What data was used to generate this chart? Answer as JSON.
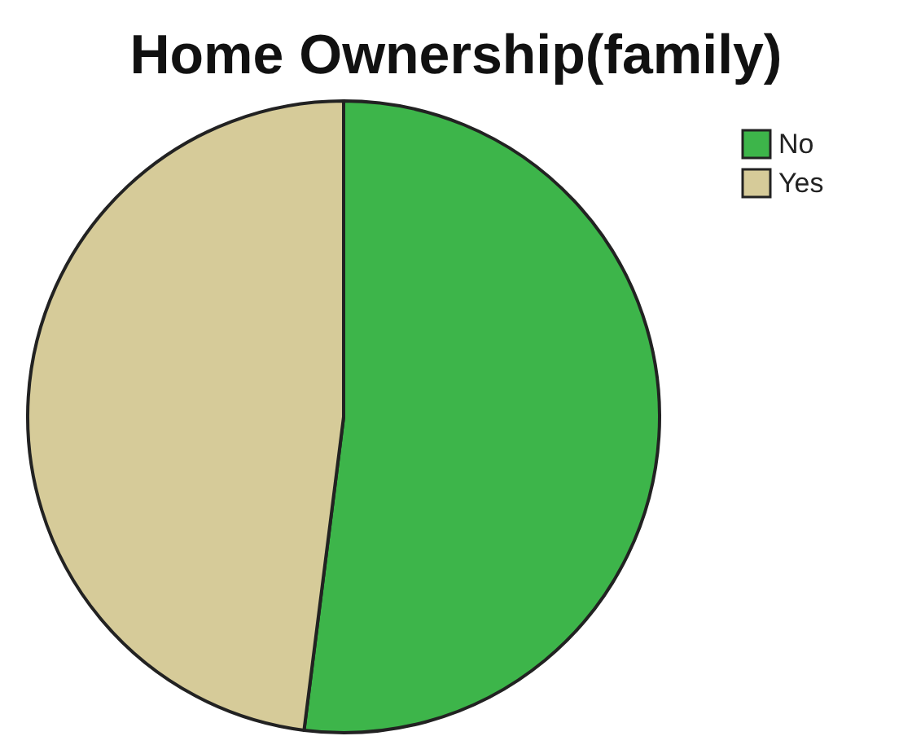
{
  "chart_data": {
    "type": "pie",
    "title": "Home Ownership(family)",
    "categories": [
      "No",
      "Yes"
    ],
    "values": [
      52,
      48
    ],
    "colors": [
      "#3db54a",
      "#d6cb99"
    ],
    "legend": "top right"
  }
}
